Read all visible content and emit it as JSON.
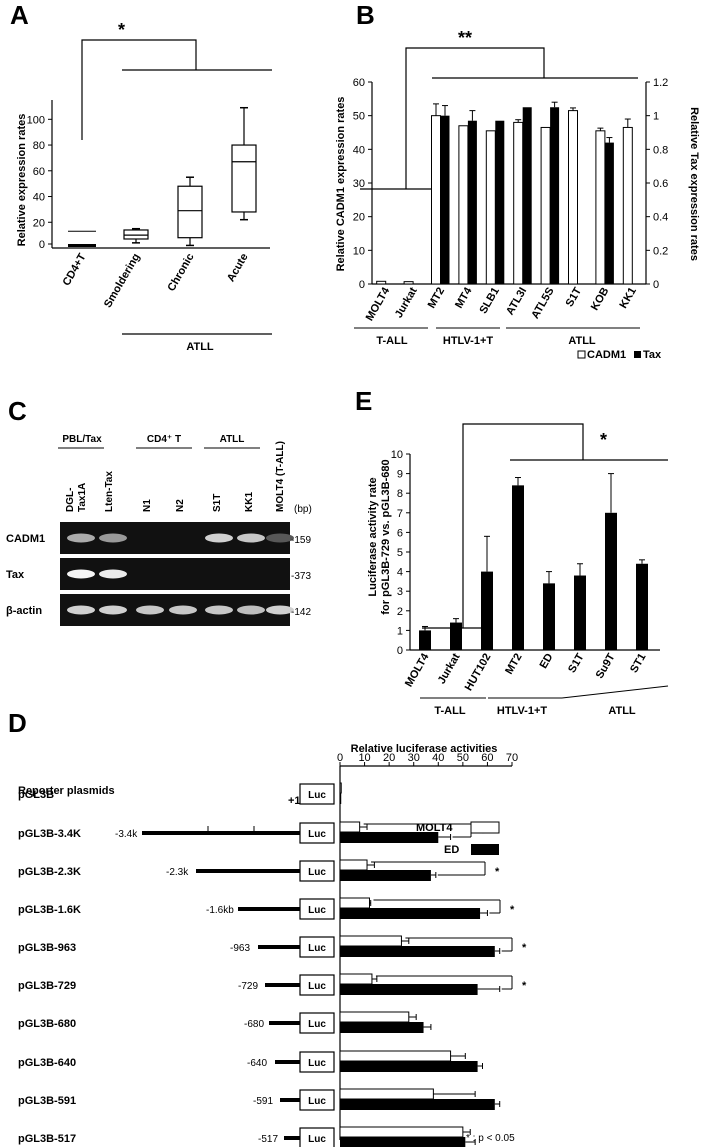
{
  "panel_labels": {
    "A": "A",
    "B": "B",
    "C": "C",
    "D": "D",
    "E": "E"
  },
  "chart_data": [
    {
      "panel": "A",
      "type": "box",
      "ylabel": "Relative expression rates",
      "yticks": [
        "0",
        "20",
        "40",
        "60",
        "80",
        "100"
      ],
      "ylim": [
        0,
        115
      ],
      "categories": [
        "CD4+T",
        "Smoldering",
        "Chronic",
        "Acute"
      ],
      "boxes": [
        {
          "min": 0,
          "q1": 0,
          "median": 0,
          "q3": 0,
          "max": 13
        },
        {
          "min": 4,
          "q1": 7,
          "median": 10,
          "q3": 14,
          "max": 15
        },
        {
          "min": 2,
          "q1": 8,
          "median": 29,
          "q3": 48,
          "max": 55
        },
        {
          "min": 22,
          "q1": 28,
          "median": 67,
          "q3": 80,
          "max": 109
        }
      ],
      "group_label": "ATLL",
      "significance": "*"
    },
    {
      "panel": "B",
      "type": "bar",
      "ylabel": "Relative CADM1 expression rates",
      "y2label": "Relative Tax expression rates",
      "yticks": [
        "0",
        "10",
        "20",
        "30",
        "40",
        "50",
        "60"
      ],
      "ylim": [
        0,
        60
      ],
      "y2ticks": [
        "0",
        "0.2",
        "0.4",
        "0.6",
        "0.8",
        "1",
        "1.2"
      ],
      "y2lim": [
        0,
        1.2
      ],
      "categories": [
        "MOLT4",
        "Jurkat",
        "MT2",
        "MT4",
        "SLB1",
        "ATL3I",
        "ATL5S",
        "S1T",
        "KOB",
        "KK1"
      ],
      "series": [
        {
          "name": "CADM1",
          "values": [
            0.8,
            0.7,
            50,
            47,
            45.5,
            48,
            46.5,
            51.5,
            45.5,
            46.5
          ],
          "errors": [
            0,
            0,
            3.5,
            0,
            0,
            0.8,
            0,
            0.8,
            0.8,
            2.5
          ]
        },
        {
          "name": "Tax",
          "values": [
            0,
            0,
            1.0,
            0.97,
            0.97,
            1.05,
            1.05,
            0,
            0.84,
            0
          ],
          "errors": [
            0,
            0,
            0.06,
            0.06,
            0,
            0,
            0.03,
            0,
            0.03,
            0
          ]
        }
      ],
      "groups": [
        "T-ALL",
        "HTLV-1+T",
        "ATLL"
      ],
      "legend": [
        "CADM1",
        "Tax"
      ],
      "significance": "**"
    },
    {
      "panel": "E",
      "type": "bar",
      "ylabel": "Luciferase activity rate for pGL3B-729 vs. pGL3B-680",
      "ylabel_lines": [
        "Luciferase activity rate",
        "for pGL3B-729 vs. pGL3B-680"
      ],
      "yticks": [
        "0",
        "1",
        "2",
        "3",
        "4",
        "5",
        "6",
        "7",
        "8",
        "9",
        "10"
      ],
      "ylim": [
        0,
        10
      ],
      "categories": [
        "MOLT4",
        "Jurkat",
        "HUT102",
        "MT2",
        "ED",
        "S1T",
        "Su9T",
        "ST1"
      ],
      "values": [
        1.0,
        1.4,
        4.0,
        8.4,
        3.4,
        3.8,
        7.0,
        4.4
      ],
      "errors": [
        0.2,
        0.2,
        1.8,
        0.4,
        0.6,
        0.6,
        2.0,
        0.2
      ],
      "groups": [
        "T-ALL",
        "HTLV-1+T",
        "ATLL"
      ],
      "significance": "*"
    },
    {
      "panel": "D",
      "type": "bar",
      "orientation": "horizontal",
      "title": "Relative luciferase activities",
      "xticks": [
        "0",
        "10",
        "20",
        "30",
        "40",
        "50",
        "60",
        "70"
      ],
      "xlim": [
        0,
        70
      ],
      "row_header": "Reporter plasmids",
      "categories": [
        "pGL3B",
        "pGL3B-3.4K",
        "pGL3B-2.3K",
        "pGL3B-1.6K",
        "pGL3B-963",
        "pGL3B-729",
        "pGL3B-680",
        "pGL3B-640",
        "pGL3B-591",
        "pGL3B-517"
      ],
      "construct_labels": [
        "",
        "-3.4k",
        "-2.3k",
        "-1.6kb",
        "-963",
        "-729",
        "-680",
        "-640",
        "-591",
        "-517"
      ],
      "tss_label": "+1",
      "reporter_label": "Luc",
      "series": [
        {
          "name": "MOLT4",
          "values": [
            0.5,
            8,
            11,
            12,
            25,
            13,
            28,
            45,
            38,
            50
          ],
          "errors": [
            0,
            3,
            3,
            0.5,
            3,
            2,
            3,
            6,
            17,
            3
          ]
        },
        {
          "name": "ED",
          "values": [
            0.5,
            40,
            37,
            57,
            63,
            56,
            34,
            56,
            63,
            51
          ],
          "errors": [
            0,
            5,
            2,
            3,
            2,
            9,
            3,
            2,
            2,
            4
          ]
        }
      ],
      "significance_rows": [
        "*",
        "*",
        "*",
        "*",
        "*"
      ],
      "footnote": "* : p < 0.05"
    }
  ],
  "gel": {
    "groups": [
      "PBL/Tax",
      "CD4⁺ T",
      "ATLL",
      "MOLT4 (T-ALL)"
    ],
    "lanes": [
      "DGL-Tax1A",
      "Lten-Tax",
      "N1",
      "N2",
      "S1T",
      "KK1"
    ],
    "lane_dgl_lines": [
      "DGL-",
      "Tax1A"
    ],
    "bp_unit": "(bp)",
    "rows": [
      {
        "name": "CADM1",
        "bp": "-159",
        "intensity": [
          0.6,
          0.5,
          0,
          0,
          0.8,
          0.75,
          0.15
        ]
      },
      {
        "name": "Tax",
        "bp": "-373",
        "intensity": [
          1,
          0.95,
          0,
          0,
          0,
          0,
          0
        ]
      },
      {
        "name": "β-actin",
        "bp": "-142",
        "intensity": [
          0.8,
          0.8,
          0.75,
          0.75,
          0.75,
          0.7,
          0.8
        ]
      }
    ]
  }
}
